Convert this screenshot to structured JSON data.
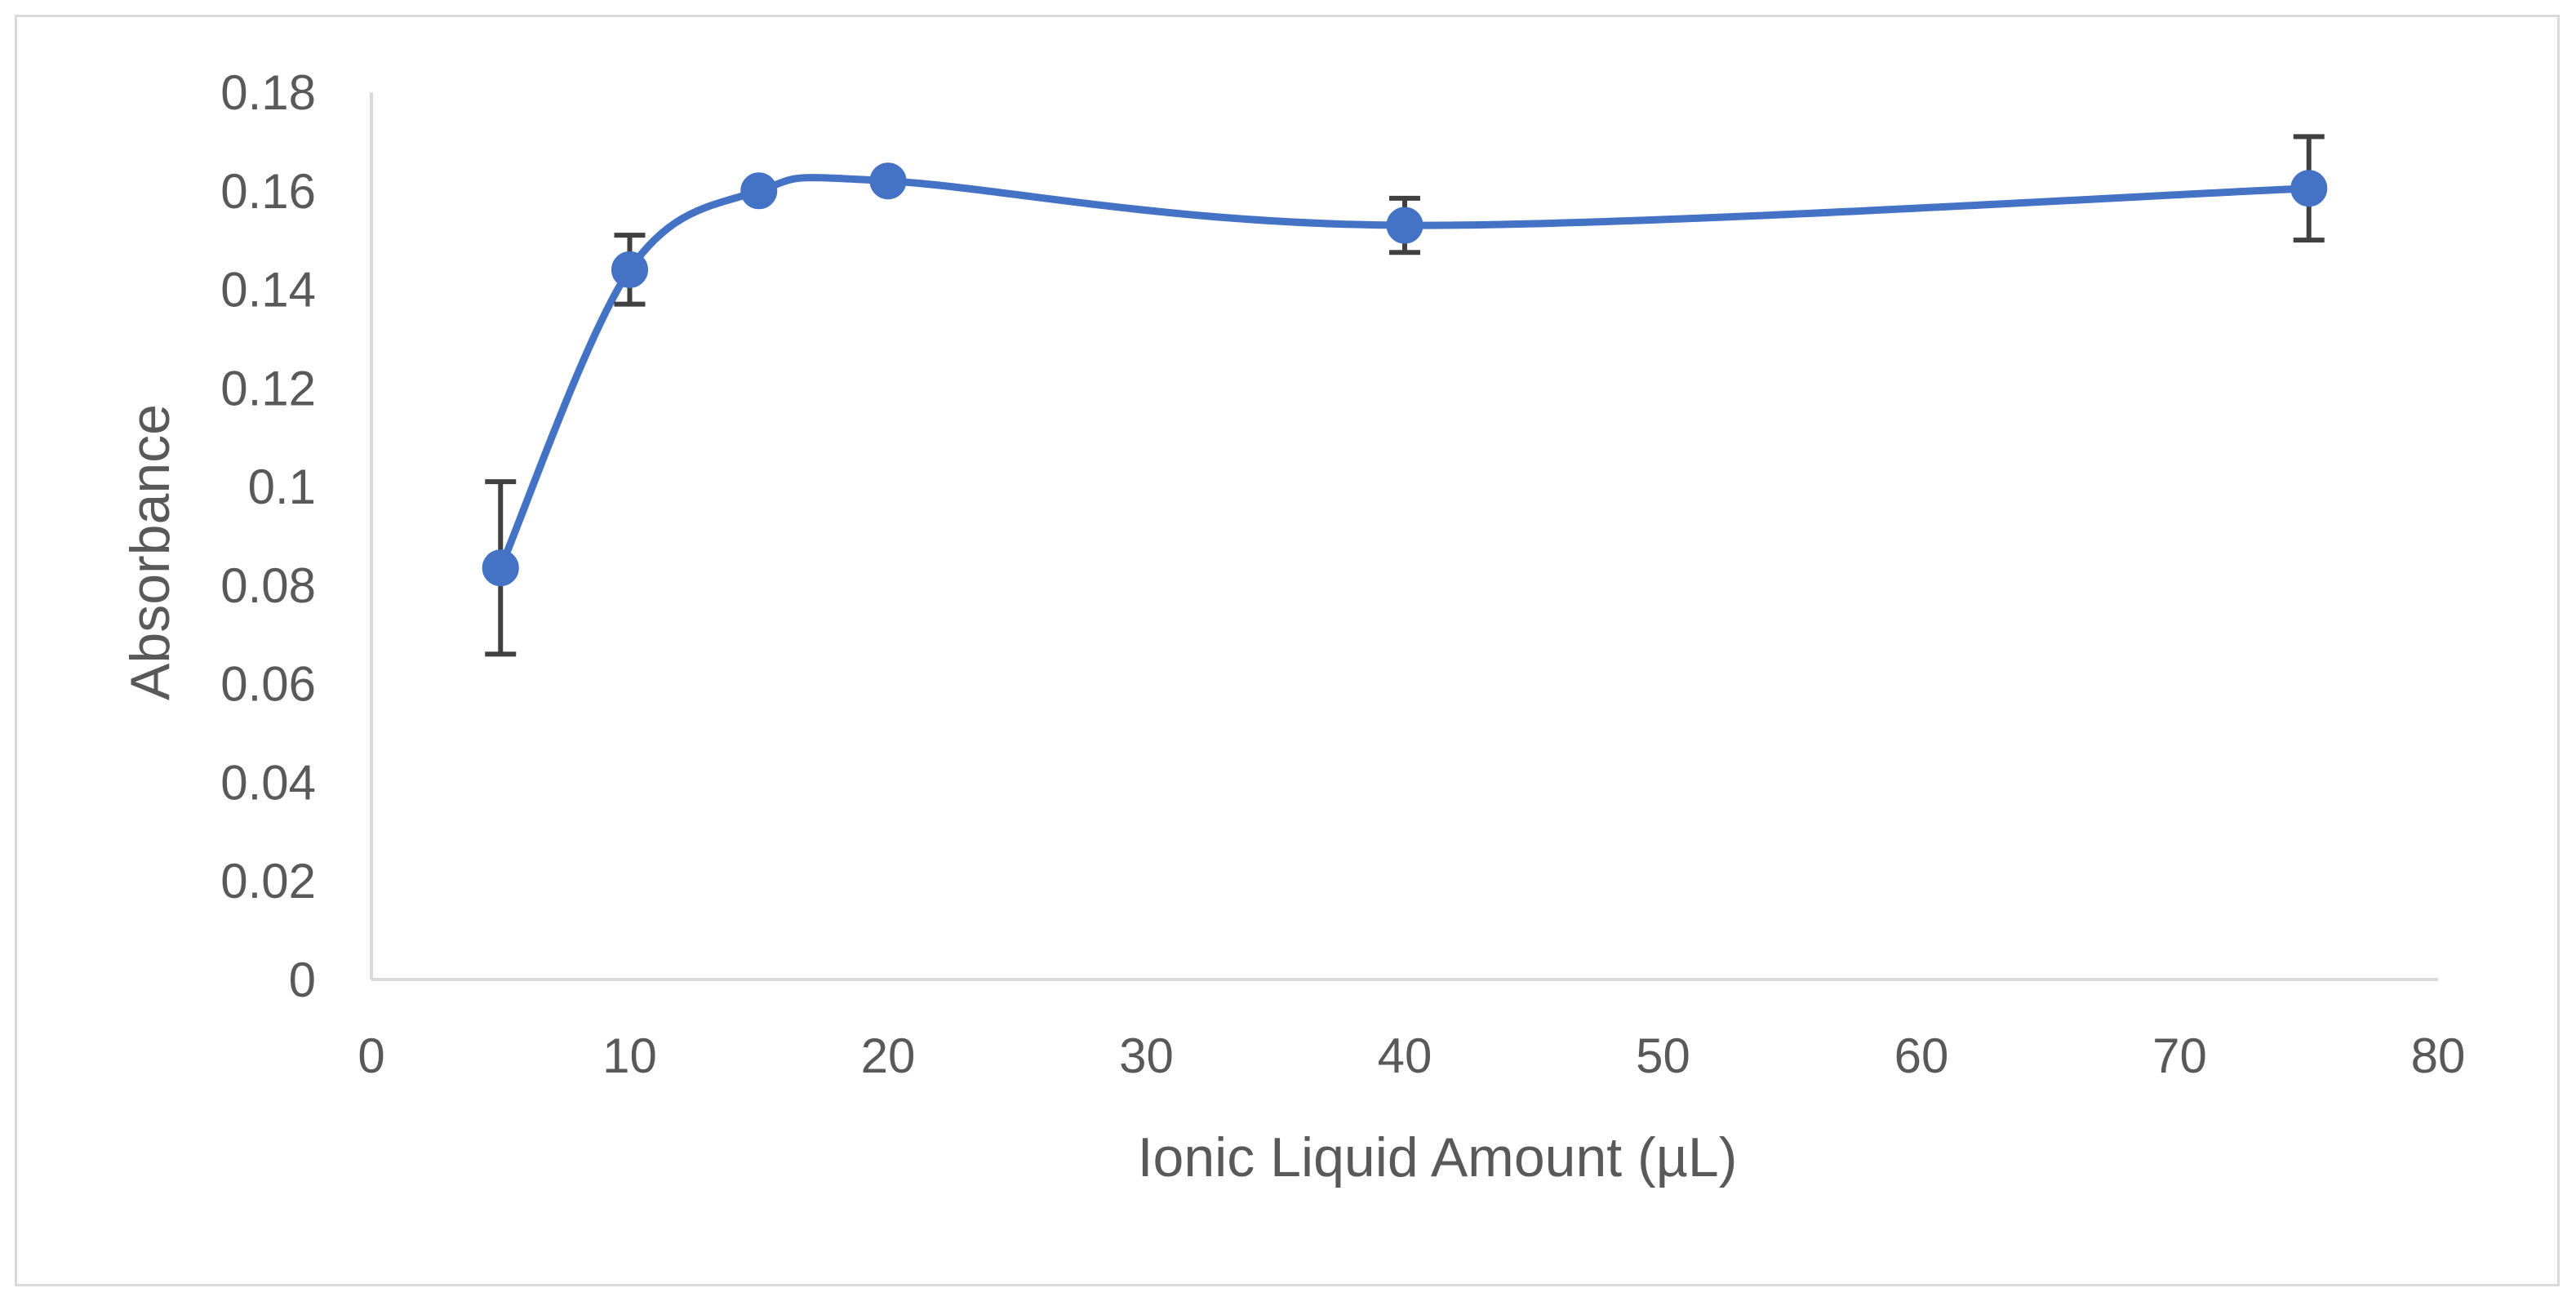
{
  "chart_data": {
    "type": "scatter",
    "title": "",
    "xlabel": "Ionic Liquid Amount (µL)",
    "ylabel": "Absorbance",
    "xlim": [
      0,
      80
    ],
    "ylim": [
      0,
      0.18
    ],
    "x_ticks": [
      "0",
      "10",
      "20",
      "30",
      "40",
      "50",
      "60",
      "70",
      "80"
    ],
    "y_ticks": [
      "0",
      "0.02",
      "0.04",
      "0.06",
      "0.08",
      "0.1",
      "0.12",
      "0.14",
      "0.16",
      "0.18"
    ],
    "grid": false,
    "legend": "none",
    "smoothed_line": true,
    "color": "#4472C4",
    "error_bar_color": "#404040",
    "series": [
      {
        "x": [
          5,
          10,
          15,
          20,
          40,
          75
        ],
        "y": [
          0.0835,
          0.144,
          0.16,
          0.162,
          0.153,
          0.1605
        ],
        "error": [
          0.0175,
          0.007,
          0,
          0,
          0.0055,
          0.0105
        ]
      }
    ]
  }
}
